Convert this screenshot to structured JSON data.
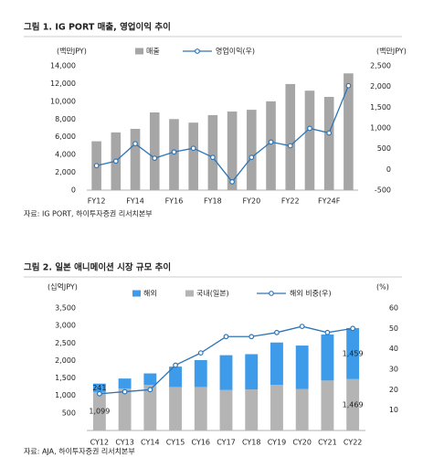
{
  "chart_data": [
    {
      "type": "bar",
      "title": "그림 1. IG PORT 매출, 영업이익 추이",
      "y_label": "(백만JPY)",
      "y2_label": "(백만JPY)",
      "source": "자료: IG PORT, 하이투자증권 리서치본부",
      "categories": [
        "FY12",
        null,
        "FY14",
        null,
        "FY16",
        null,
        "FY18",
        null,
        "FY20",
        null,
        "FY22",
        null,
        "FY24F",
        null
      ],
      "series": [
        {
          "name": "매출",
          "type": "bar",
          "color": "#a6a6a6",
          "values": [
            5500,
            6500,
            6900,
            8750,
            8000,
            7600,
            8450,
            8850,
            9050,
            10000,
            11950,
            11200,
            10500,
            13150
          ]
        },
        {
          "name": "영업이익(우)",
          "type": "line",
          "axis": "y2",
          "color": "#2e75b6",
          "values": [
            90,
            200,
            620,
            270,
            420,
            510,
            290,
            -300,
            290,
            660,
            570,
            990,
            880,
            2020
          ]
        }
      ],
      "ylim": [
        0,
        14000
      ],
      "yticks": [
        0,
        {
          "value": 2000,
          "label": "2,000"
        },
        {
          "value": 4000,
          "label": "4,000"
        },
        {
          "value": 6000,
          "label": "6,000"
        },
        {
          "value": 8000,
          "label": "8,000"
        },
        {
          "value": 10000,
          "label": "10,000"
        },
        {
          "value": 12000,
          "label": "12,000"
        },
        {
          "value": 14000,
          "label": "14,000"
        }
      ],
      "y2lim": [
        -500,
        2500
      ],
      "y2ticks": [
        -500,
        0,
        500,
        {
          "value": 1000,
          "label": "1,000"
        },
        {
          "value": 1500,
          "label": "1,500"
        },
        {
          "value": 2000,
          "label": "2,000"
        },
        {
          "value": 2500,
          "label": "2,500"
        }
      ],
      "grid": false
    },
    {
      "type": "stacked_bar",
      "title": "그림 2. 일본 애니메이션 시장 규모 추이",
      "y_label": "(십억JPY)",
      "y2_label": "(%)",
      "source": "자료: AJA, 하이투자증권 리서치본부",
      "categories": [
        "CY12",
        "CY13",
        "CY14",
        "CY15",
        "CY16",
        "CY17",
        "CY18",
        "CY19",
        "CY20",
        "CY21",
        "CY22"
      ],
      "series": [
        {
          "name": "해외",
          "type": "bar",
          "color": "#3d9be9",
          "values": [
            241,
            283,
            326,
            583,
            768,
            995,
            1009,
            1209,
            1239,
            1314,
            1459
          ],
          "value_labels": [
            "241",
            null,
            null,
            null,
            null,
            null,
            null,
            null,
            null,
            null,
            "1,459"
          ]
        },
        {
          "name": "국내(일본)",
          "type": "bar",
          "color": "#b4b4b4",
          "values": [
            1099,
            1202,
            1305,
            1243,
            1243,
            1157,
            1172,
            1305,
            1188,
            1428,
            1469
          ],
          "value_labels": [
            "1,099",
            null,
            null,
            null,
            null,
            null,
            null,
            null,
            null,
            null,
            "1,469"
          ]
        },
        {
          "name": "해외 비중(우)",
          "type": "line",
          "axis": "y2",
          "color": "#2e75b6",
          "values": [
            18,
            19,
            20,
            32,
            38,
            46,
            46,
            48,
            51,
            48,
            50
          ]
        }
      ],
      "ylim": [
        0,
        3500
      ],
      "yticks": [
        500,
        {
          "value": 1000,
          "label": "1,000"
        },
        {
          "value": 1500,
          "label": "1,500"
        },
        {
          "value": 2000,
          "label": "2,000"
        },
        {
          "value": 2500,
          "label": "2,500"
        },
        {
          "value": 3000,
          "label": "3,000"
        },
        {
          "value": 3500,
          "label": "3,500"
        }
      ],
      "y2lim": [
        0,
        60
      ],
      "y2ticks": [
        10,
        20,
        30,
        40,
        50,
        60
      ],
      "grid": false
    }
  ]
}
